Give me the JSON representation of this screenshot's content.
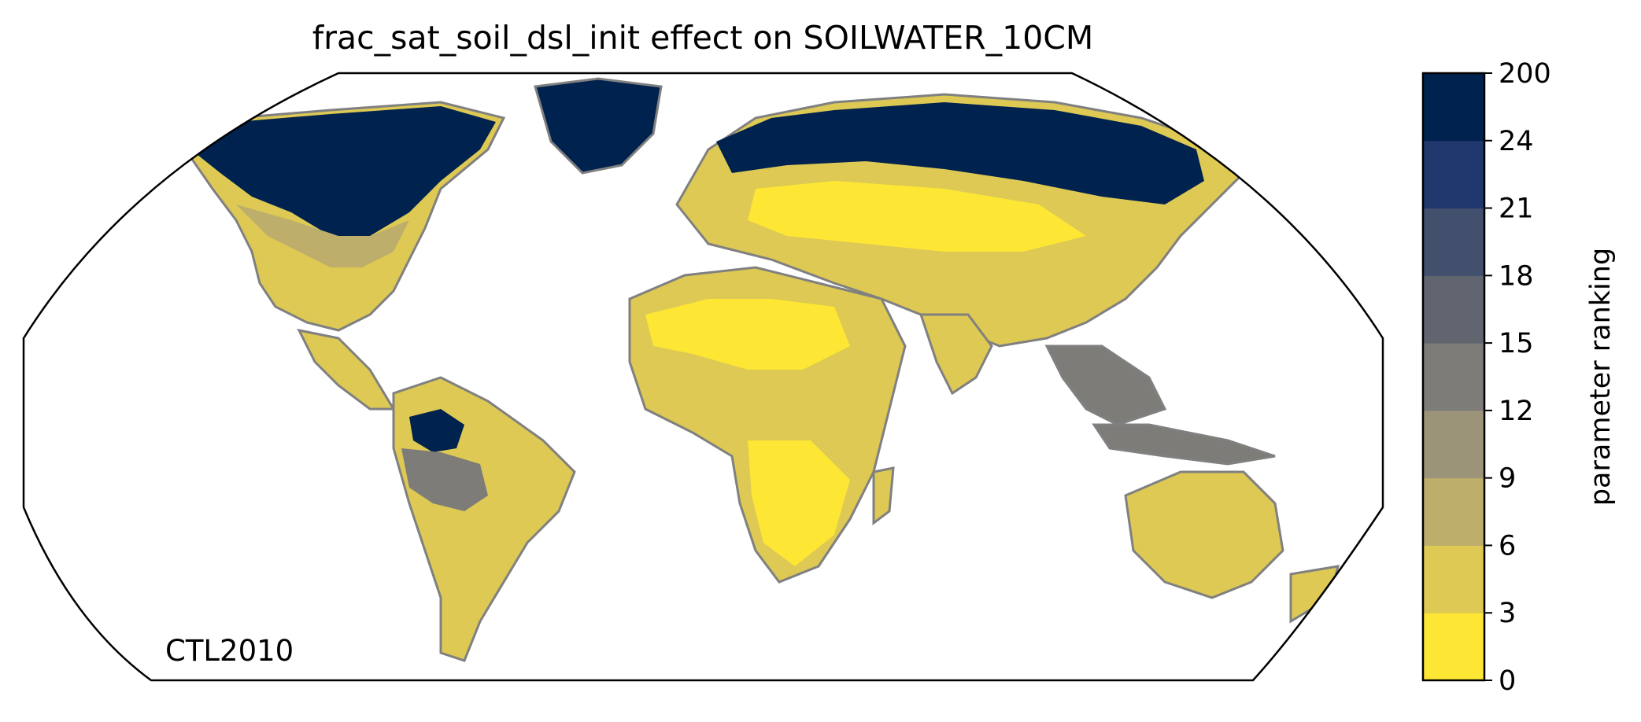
{
  "map": {
    "title": "frac_sat_soil_dsl_init effect on SOILWATER_10CM",
    "annotation": "CTL2010",
    "projection": "robinson",
    "coastline_color": "#808080",
    "ocean_color": "#ffffff",
    "extent": "global"
  },
  "colorbar": {
    "label": "parameter ranking",
    "ticks": [
      "0",
      "3",
      "6",
      "9",
      "12",
      "15",
      "18",
      "21",
      "24",
      "200"
    ],
    "colors": [
      "#FDE734",
      "#DDC953",
      "#BEAE6C",
      "#9C9479",
      "#7D7C78",
      "#616570",
      "#424F6D",
      "#20386E",
      "#00224E"
    ],
    "orientation": "vertical",
    "placement": "right"
  },
  "regions": [
    {
      "name": "Greenland",
      "rank_class": 8
    },
    {
      "name": "Northern Eurasia",
      "rank_class": 8
    },
    {
      "name": "Northern North America",
      "rank_class": 8
    },
    {
      "name": "Amazon",
      "rank_class": 8
    },
    {
      "name": "North Africa",
      "rank_class": 1
    },
    {
      "name": "Southern Africa",
      "rank_class": 0
    },
    {
      "name": "Australia",
      "rank_class": 1
    },
    {
      "name": "Southeast Asia",
      "rank_class": 4
    }
  ]
}
